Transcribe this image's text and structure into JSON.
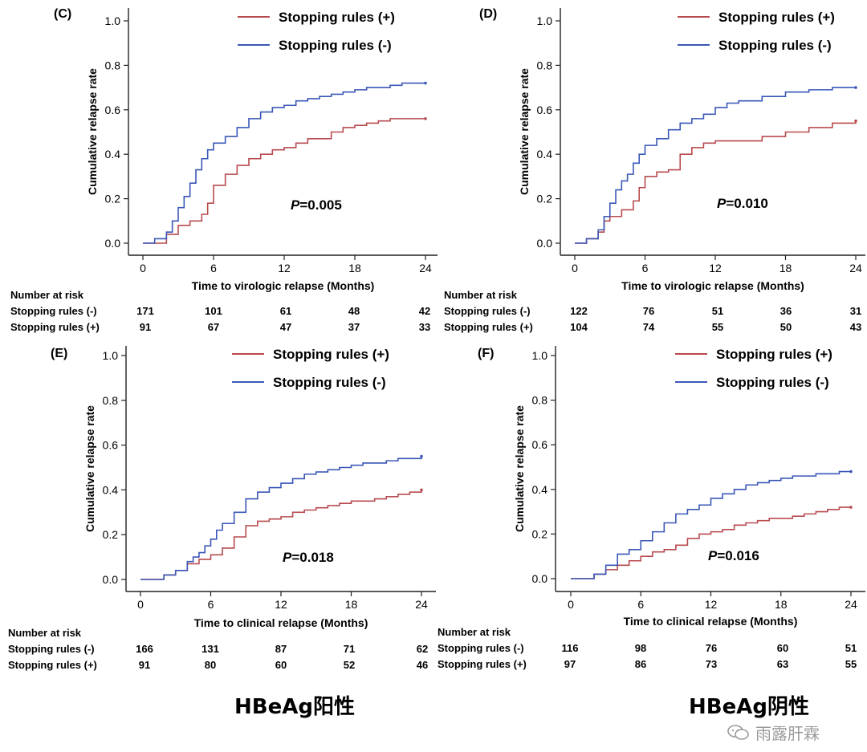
{
  "chart_data": [
    {
      "panel": "(C)",
      "type": "line",
      "title": "",
      "xlabel": "Time to virologic relapse (Months)",
      "ylabel": "Cumulative relapse rate",
      "xlim": [
        0,
        24
      ],
      "ylim": [
        0,
        1.0
      ],
      "xticks": [
        "0",
        "6",
        "12",
        "18",
        "24"
      ],
      "yticks": [
        "0.0",
        "0.2",
        "0.4",
        "0.6",
        "0.8",
        "1.0"
      ],
      "p_value": "=0.005",
      "series": [
        {
          "name": "Stopping rules (+)",
          "color": "#b84a4f",
          "x": [
            0,
            2,
            3,
            4,
            5,
            5.5,
            6,
            7,
            8,
            9,
            10,
            11,
            12,
            13,
            14,
            15,
            16,
            17,
            18,
            19,
            20,
            21,
            22,
            23,
            24
          ],
          "y": [
            0,
            0.04,
            0.08,
            0.1,
            0.13,
            0.18,
            0.26,
            0.31,
            0.35,
            0.38,
            0.4,
            0.42,
            0.43,
            0.45,
            0.47,
            0.47,
            0.5,
            0.52,
            0.53,
            0.54,
            0.55,
            0.56,
            0.56,
            0.56,
            0.56
          ]
        },
        {
          "name": "Stopping rules (-)",
          "color": "#3a57b8",
          "x": [
            0,
            1,
            2,
            2.5,
            3,
            3.5,
            4,
            4.5,
            5,
            5.5,
            6,
            7,
            8,
            9,
            10,
            11,
            12,
            13,
            14,
            15,
            16,
            17,
            18,
            19,
            20,
            21,
            22,
            23,
            24
          ],
          "y": [
            0,
            0.02,
            0.05,
            0.1,
            0.16,
            0.21,
            0.27,
            0.33,
            0.38,
            0.42,
            0.45,
            0.48,
            0.52,
            0.56,
            0.59,
            0.61,
            0.62,
            0.64,
            0.65,
            0.66,
            0.67,
            0.68,
            0.69,
            0.7,
            0.7,
            0.71,
            0.72,
            0.72,
            0.72
          ]
        }
      ],
      "risk_table": {
        "header": "Number at risk",
        "rows": [
          {
            "label": "Stopping rules (-)",
            "values": [
              "171",
              "101",
              "61",
              "48",
              "42"
            ]
          },
          {
            "label": "Stopping rules (+)",
            "values": [
              "91",
              "67",
              "47",
              "37",
              "33"
            ]
          }
        ]
      }
    },
    {
      "panel": "(D)",
      "type": "line",
      "title": "",
      "xlabel": "Time to virologic relapse (Months)",
      "ylabel": "Cumulative relapse rate",
      "xlim": [
        0,
        24
      ],
      "ylim": [
        0,
        1.0
      ],
      "xticks": [
        "0",
        "6",
        "12",
        "18",
        "24"
      ],
      "yticks": [
        "0.0",
        "0.2",
        "0.4",
        "0.6",
        "0.8",
        "1.0"
      ],
      "p_value": "=0.010",
      "series": [
        {
          "name": "Stopping rules (+)",
          "color": "#b84a4f",
          "x": [
            0,
            1,
            2,
            2.5,
            3,
            4,
            5,
            5.5,
            6,
            7,
            8,
            9,
            10,
            11,
            12,
            14,
            16,
            18,
            20,
            22,
            24
          ],
          "y": [
            0,
            0.02,
            0.05,
            0.1,
            0.12,
            0.15,
            0.19,
            0.25,
            0.3,
            0.32,
            0.33,
            0.4,
            0.43,
            0.45,
            0.46,
            0.46,
            0.48,
            0.5,
            0.52,
            0.54,
            0.55
          ]
        },
        {
          "name": "Stopping rules (-)",
          "color": "#3a57b8",
          "x": [
            0,
            1,
            2,
            2.5,
            3,
            3.5,
            4,
            4.5,
            5,
            5.5,
            6,
            7,
            8,
            9,
            10,
            11,
            12,
            13,
            14,
            16,
            18,
            20,
            22,
            24
          ],
          "y": [
            0,
            0.02,
            0.06,
            0.12,
            0.18,
            0.24,
            0.28,
            0.31,
            0.36,
            0.4,
            0.44,
            0.47,
            0.51,
            0.54,
            0.56,
            0.58,
            0.61,
            0.63,
            0.64,
            0.66,
            0.68,
            0.69,
            0.7,
            0.7
          ]
        }
      ],
      "risk_table": {
        "header": "Number at risk",
        "rows": [
          {
            "label": "Stopping rules (-)",
            "values": [
              "122",
              "76",
              "51",
              "36",
              "31"
            ]
          },
          {
            "label": "Stopping rules (+)",
            "values": [
              "104",
              "74",
              "55",
              "50",
              "43"
            ]
          }
        ]
      }
    },
    {
      "panel": "(E)",
      "type": "line",
      "title": "",
      "xlabel": "Time to clinical relapse (Months)",
      "ylabel": "Cumulative relapse rate",
      "xlim": [
        0,
        24
      ],
      "ylim": [
        0,
        1.0
      ],
      "xticks": [
        "0",
        "6",
        "12",
        "18",
        "24"
      ],
      "yticks": [
        "0.0",
        "0.2",
        "0.4",
        "0.6",
        "0.8",
        "1.0"
      ],
      "p_value": "=0.018",
      "series": [
        {
          "name": "Stopping rules (+)",
          "color": "#b84a4f",
          "x": [
            0,
            2,
            3,
            4,
            5,
            6,
            7,
            8,
            9,
            10,
            11,
            12,
            13,
            14,
            15,
            16,
            17,
            18,
            19,
            20,
            21,
            22,
            23,
            24
          ],
          "y": [
            0,
            0.02,
            0.04,
            0.07,
            0.09,
            0.11,
            0.14,
            0.19,
            0.24,
            0.26,
            0.27,
            0.28,
            0.3,
            0.31,
            0.32,
            0.33,
            0.34,
            0.35,
            0.35,
            0.36,
            0.37,
            0.38,
            0.39,
            0.4
          ]
        },
        {
          "name": "Stopping rules (-)",
          "color": "#3a57b8",
          "x": [
            0,
            2,
            3,
            4,
            4.5,
            5,
            5.5,
            6,
            6.5,
            7,
            8,
            9,
            10,
            11,
            12,
            13,
            14,
            15,
            16,
            17,
            18,
            19,
            20,
            21,
            22,
            23,
            24
          ],
          "y": [
            0,
            0.02,
            0.04,
            0.08,
            0.1,
            0.12,
            0.15,
            0.18,
            0.22,
            0.25,
            0.3,
            0.36,
            0.39,
            0.41,
            0.43,
            0.45,
            0.47,
            0.48,
            0.49,
            0.5,
            0.51,
            0.52,
            0.52,
            0.53,
            0.54,
            0.54,
            0.55
          ]
        }
      ],
      "risk_table": {
        "header": "Number at risk",
        "rows": [
          {
            "label": "Stopping rules (-)",
            "values": [
              "166",
              "131",
              "87",
              "71",
              "62"
            ]
          },
          {
            "label": "Stopping rules (+)",
            "values": [
              "91",
              "80",
              "60",
              "52",
              "46"
            ]
          }
        ]
      }
    },
    {
      "panel": "(F)",
      "type": "line",
      "title": "",
      "xlabel": "Time to clinical relapse (Months)",
      "ylabel": "Cumulative relapse rate",
      "xlim": [
        0,
        24
      ],
      "ylim": [
        0,
        1.0
      ],
      "xticks": [
        "0",
        "6",
        "12",
        "18",
        "24"
      ],
      "yticks": [
        "0.0",
        "0.2",
        "0.4",
        "0.6",
        "0.8",
        "1.0"
      ],
      "p_value": "=0.016",
      "series": [
        {
          "name": "Stopping rules (+)",
          "color": "#b84a4f",
          "x": [
            0,
            2,
            3,
            4,
            5,
            6,
            7,
            8,
            9,
            10,
            11,
            12,
            13,
            14,
            15,
            16,
            17,
            18,
            19,
            20,
            21,
            22,
            23,
            24
          ],
          "y": [
            0,
            0.02,
            0.04,
            0.06,
            0.08,
            0.1,
            0.12,
            0.13,
            0.15,
            0.18,
            0.2,
            0.21,
            0.22,
            0.24,
            0.25,
            0.26,
            0.27,
            0.27,
            0.28,
            0.29,
            0.3,
            0.31,
            0.32,
            0.32
          ]
        },
        {
          "name": "Stopping rules (-)",
          "color": "#3a57b8",
          "x": [
            0,
            2,
            3,
            4,
            5,
            6,
            7,
            8,
            9,
            10,
            11,
            12,
            13,
            14,
            15,
            16,
            17,
            18,
            19,
            20,
            21,
            22,
            23,
            24
          ],
          "y": [
            0,
            0.02,
            0.06,
            0.11,
            0.13,
            0.17,
            0.21,
            0.25,
            0.29,
            0.31,
            0.33,
            0.36,
            0.38,
            0.4,
            0.42,
            0.43,
            0.44,
            0.45,
            0.46,
            0.46,
            0.47,
            0.47,
            0.48,
            0.48
          ]
        }
      ],
      "risk_table": {
        "header": "Number at risk",
        "rows": [
          {
            "label": "Stopping rules (-)",
            "values": [
              "116",
              "98",
              "76",
              "60",
              "51"
            ]
          },
          {
            "label": "Stopping rules (+)",
            "values": [
              "97",
              "86",
              "73",
              "63",
              "55"
            ]
          }
        ]
      }
    }
  ],
  "group_labels": {
    "left": "HBeAg阳性",
    "right": "HBeAg阴性"
  },
  "p_prefix": "P",
  "watermark": {
    "text": "雨露肝霖",
    "icon": "wechat-icon"
  }
}
